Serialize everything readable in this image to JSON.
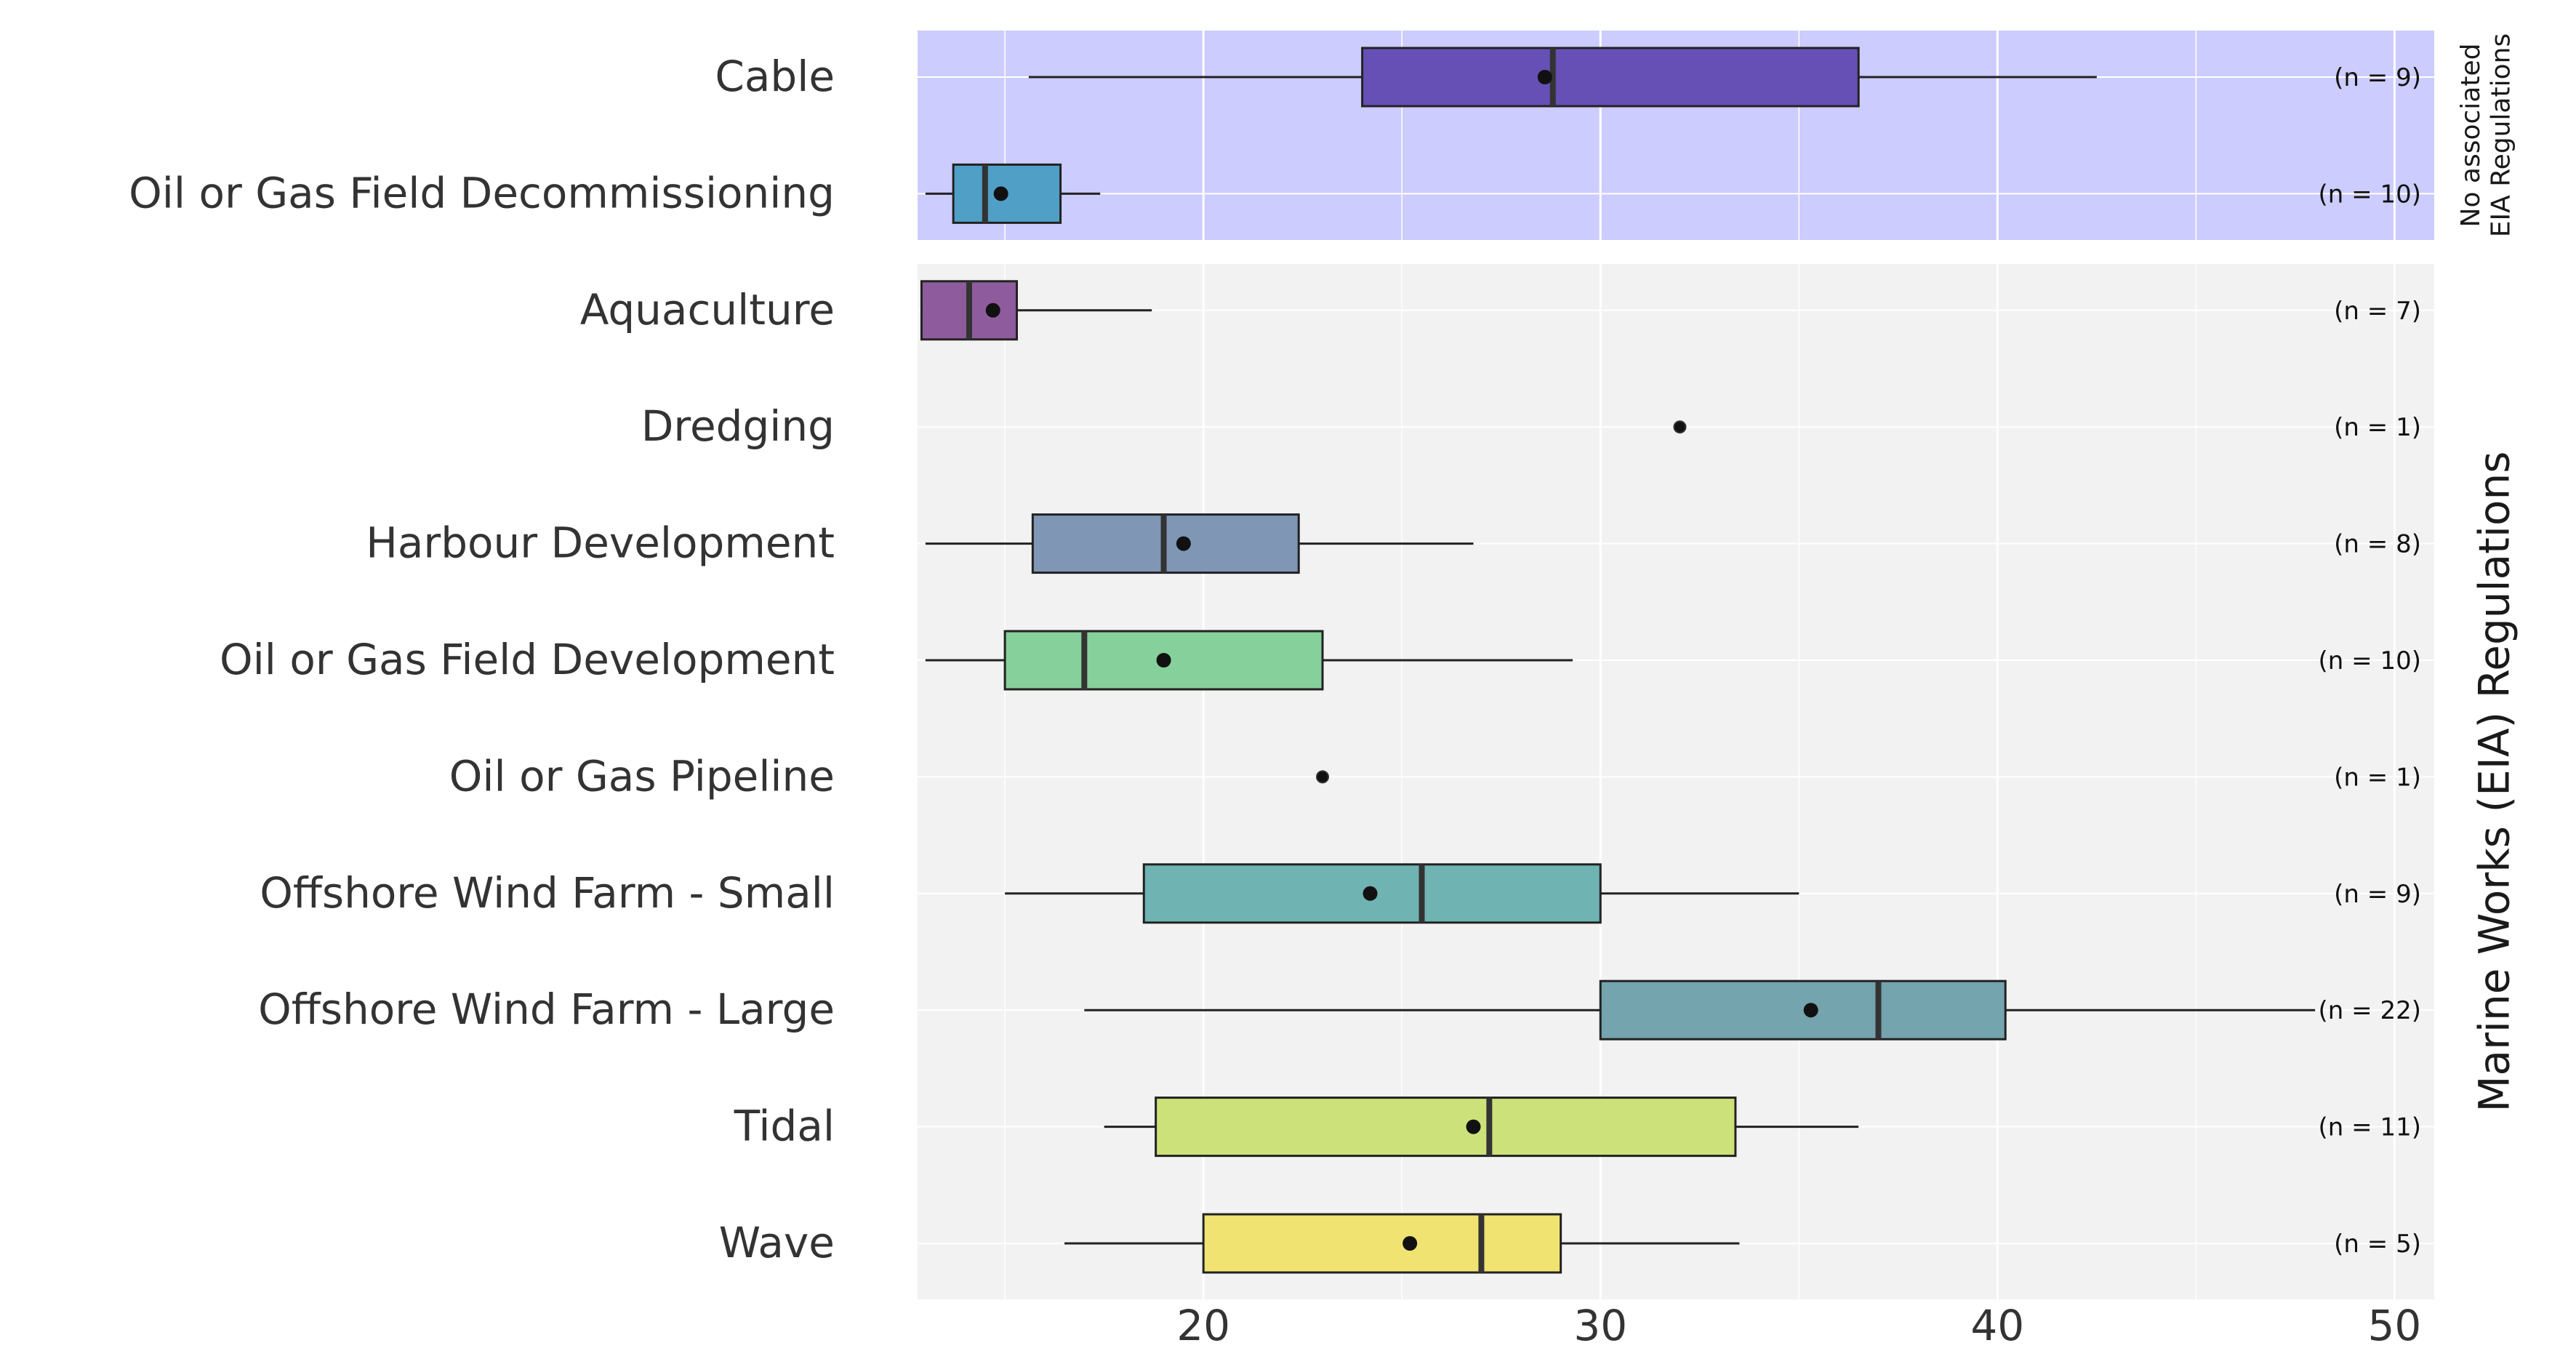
{
  "chart_data": {
    "type": "boxplot",
    "orientation": "horizontal",
    "title": "",
    "xlabel": "",
    "ylabel": "",
    "xlim": [
      12.8,
      51.0
    ],
    "x_ticks": [
      20,
      30,
      40,
      50
    ],
    "grid": true,
    "panels": [
      {
        "name": "top",
        "strip_label": "No associated\nEIA Regulations",
        "background": "#ccccff",
        "rows": 2
      },
      {
        "name": "bottom",
        "strip_label": "Marine Works (EIA) Regulations",
        "background": "#f2f2f2",
        "rows": 9
      }
    ],
    "series": [
      {
        "name": "Cable",
        "panel": "top",
        "n_label": "(n = 9)",
        "color": "#6650b6",
        "whisker_low": 15.6,
        "q1": 24.0,
        "median": 28.8,
        "q3": 36.5,
        "whisker_high": 42.5,
        "mean": 28.6
      },
      {
        "name": "Oil or Gas Field Decommissioning",
        "panel": "top",
        "n_label": "(n = 10)",
        "color": "#4f9fc6",
        "whisker_low": 13.0,
        "q1": 13.7,
        "median": 14.5,
        "q3": 16.4,
        "whisker_high": 17.4,
        "mean": 14.9
      },
      {
        "name": "Aquaculture",
        "panel": "bottom",
        "n_label": "(n = 7)",
        "color": "#8e5c9d",
        "whisker_low": 12.9,
        "q1": 12.9,
        "median": 14.1,
        "q3": 15.3,
        "whisker_high": 18.7,
        "mean": 14.7
      },
      {
        "name": "Dredging",
        "panel": "bottom",
        "n_label": "(n = 1)",
        "color": "#cccccc",
        "whisker_low": 32.0,
        "q1": 32.0,
        "median": 32.0,
        "q3": 32.0,
        "whisker_high": 32.0,
        "mean": 32.0
      },
      {
        "name": "Harbour Development",
        "panel": "bottom",
        "n_label": "(n = 8)",
        "color": "#7f96b4",
        "whisker_low": 13.0,
        "q1": 15.7,
        "median": 19.0,
        "q3": 22.4,
        "whisker_high": 26.8,
        "mean": 19.5
      },
      {
        "name": "Oil or Gas Field Development",
        "panel": "bottom",
        "n_label": "(n = 10)",
        "color": "#86d09b",
        "whisker_low": 13.0,
        "q1": 15.0,
        "median": 17.0,
        "q3": 23.0,
        "whisker_high": 29.3,
        "mean": 19.0
      },
      {
        "name": "Oil or Gas Pipeline",
        "panel": "bottom",
        "n_label": "(n = 1)",
        "color": "#cccccc",
        "whisker_low": 23.0,
        "q1": 23.0,
        "median": 23.0,
        "q3": 23.0,
        "whisker_high": 23.0,
        "mean": 23.0
      },
      {
        "name": "Offshore Wind Farm - Small",
        "panel": "bottom",
        "n_label": "(n = 9)",
        "color": "#6fb3b2",
        "whisker_low": 15.0,
        "q1": 18.5,
        "median": 25.5,
        "q3": 30.0,
        "whisker_high": 35.0,
        "mean": 24.2
      },
      {
        "name": "Offshore Wind Farm - Large",
        "panel": "bottom",
        "n_label": "(n = 22)",
        "color": "#74a4ae",
        "whisker_low": 17.0,
        "q1": 30.0,
        "median": 37.0,
        "q3": 40.2,
        "whisker_high": 48.0,
        "mean": 35.3
      },
      {
        "name": "Tidal",
        "panel": "bottom",
        "n_label": "(n = 11)",
        "color": "#cde17a",
        "whisker_low": 17.5,
        "q1": 18.8,
        "median": 27.2,
        "q3": 33.4,
        "whisker_high": 36.5,
        "mean": 26.8
      },
      {
        "name": "Wave",
        "panel": "bottom",
        "n_label": "(n = 5)",
        "color": "#f0e372",
        "whisker_low": 16.5,
        "q1": 20.0,
        "median": 27.0,
        "q3": 29.0,
        "whisker_high": 33.5,
        "mean": 25.2
      }
    ]
  }
}
